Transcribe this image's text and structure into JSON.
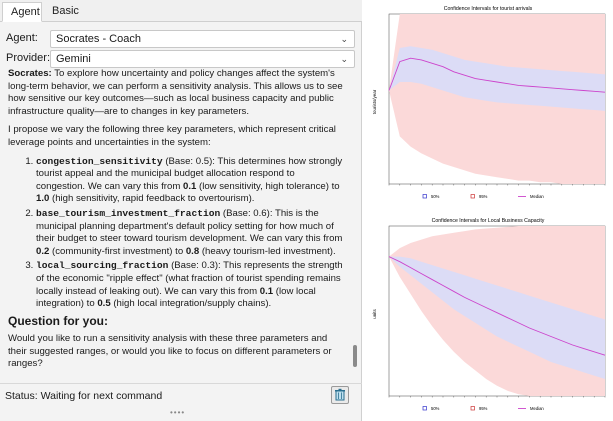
{
  "tabs": [
    {
      "label": "Agent"
    },
    {
      "label": "Basic"
    }
  ],
  "agent_row": {
    "label": "Agent:",
    "value": "Socrates - Coach"
  },
  "provider_row": {
    "label": "Provider:",
    "value": "Gemini"
  },
  "chat": {
    "intro_speaker": "Socrates:",
    "intro_text": " To explore how uncertainty and policy changes affect the system's long-term behavior, we can perform a sensitivity analysis. This allows us to see how sensitive our key outcomes—such as local business capacity and public infrastructure quality—are to changes in key parameters.",
    "propose": "I propose we vary the following three key parameters, which represent critical leverage points and uncertainties in the system:",
    "params": [
      {
        "name": "congestion_sensitivity",
        "base": " (Base: 0.5): This determines how strongly tourist appeal and the municipal budget allocation respond to congestion. We can vary this from ",
        "low": "0.1",
        "mid": " (low sensitivity, high tolerance) to ",
        "high": "1.0",
        "tail": " (high sensitivity, rapid feedback to overtourism)."
      },
      {
        "name": "base_tourism_investment_fraction",
        "base": " (Base: 0.6): This is the municipal planning department's default policy setting for how much of their budget to steer toward tourism development. We can vary this from ",
        "low": "0.2",
        "mid": " (community-first investment) to ",
        "high": "0.8",
        "tail": " (heavy tourism-led investment)."
      },
      {
        "name": "local_sourcing_fraction",
        "base": " (Base: 0.3): This represents the strength of the economic \"ripple effect\" (what fraction of tourist spending remains locally instead of leaking out). We can vary this from ",
        "low": "0.1",
        "mid": " (low local integration) to ",
        "high": "0.5",
        "tail": " (high local integration/supply chains)."
      }
    ],
    "question_heading": "Question for you:",
    "question_text": "Would you like to run a sensitivity analysis with these three parameters and their suggested ranges, or would you like to focus on different parameters or ranges?"
  },
  "status": "Status: Waiting for next command",
  "icons": {
    "trash": "trash-icon",
    "chevron": "chevron-down-icon",
    "grip": "resize-grip-icon"
  },
  "colors": {
    "band95": "#fbd9d9",
    "band50": "#dcdcf6",
    "median": "#cc44cc"
  },
  "charts": [
    {
      "title": "Confidence Intervals for tourist arrivals",
      "ylabel": "tourists/year",
      "legend": [
        "50%",
        "95%",
        "Median"
      ],
      "chart_data": {
        "type": "area",
        "x": [
          0,
          1,
          2,
          3,
          4,
          5,
          6,
          7,
          8,
          9,
          10,
          11,
          12,
          13,
          14,
          15,
          16,
          17,
          18,
          19,
          20
        ],
        "median": [
          0.55,
          0.72,
          0.74,
          0.73,
          0.71,
          0.69,
          0.66,
          0.64,
          0.62,
          0.61,
          0.6,
          0.59,
          0.58,
          0.575,
          0.57,
          0.565,
          0.56,
          0.555,
          0.55,
          0.545,
          0.54
        ],
        "band50_low": [
          0.55,
          0.6,
          0.6,
          0.59,
          0.57,
          0.55,
          0.53,
          0.51,
          0.5,
          0.49,
          0.48,
          0.475,
          0.47,
          0.465,
          0.46,
          0.455,
          0.45,
          0.445,
          0.44,
          0.435,
          0.43
        ],
        "band50_high": [
          0.55,
          0.8,
          0.81,
          0.8,
          0.79,
          0.77,
          0.75,
          0.73,
          0.72,
          0.71,
          0.7,
          0.69,
          0.685,
          0.68,
          0.675,
          0.67,
          0.665,
          0.66,
          0.655,
          0.65,
          0.645
        ],
        "band95_low": [
          0.55,
          0.28,
          0.22,
          0.18,
          0.15,
          0.12,
          0.1,
          0.08,
          0.06,
          0.05,
          0.04,
          0.03,
          0.02,
          0.02,
          0.01,
          0.01,
          0.0,
          0.0,
          0.0,
          0.0,
          0.0
        ],
        "band95_high": [
          0.55,
          1.0,
          1.0,
          1.0,
          1.0,
          1.0,
          1.0,
          1.0,
          1.0,
          1.0,
          1.0,
          1.0,
          1.0,
          1.0,
          1.0,
          1.0,
          1.0,
          1.0,
          1.0,
          1.0,
          1.0
        ]
      }
    },
    {
      "title": "Confidence Intervals for Local Business Capacity",
      "ylabel": "units",
      "legend": [
        "50%",
        "95%",
        "Median"
      ],
      "chart_data": {
        "type": "area",
        "x": [
          0,
          1,
          2,
          3,
          4,
          5,
          6,
          7,
          8,
          9,
          10,
          11,
          12,
          13,
          14,
          15,
          16,
          17,
          18,
          19,
          20
        ],
        "median": [
          0.82,
          0.79,
          0.755,
          0.72,
          0.685,
          0.65,
          0.615,
          0.58,
          0.55,
          0.52,
          0.49,
          0.46,
          0.43,
          0.4,
          0.375,
          0.35,
          0.325,
          0.3,
          0.28,
          0.26,
          0.24
        ],
        "band50_low": [
          0.82,
          0.76,
          0.71,
          0.66,
          0.61,
          0.56,
          0.51,
          0.47,
          0.43,
          0.39,
          0.35,
          0.32,
          0.29,
          0.26,
          0.23,
          0.2,
          0.18,
          0.16,
          0.14,
          0.12,
          0.1
        ],
        "band50_high": [
          0.82,
          0.82,
          0.81,
          0.79,
          0.77,
          0.75,
          0.73,
          0.71,
          0.69,
          0.67,
          0.65,
          0.63,
          0.61,
          0.59,
          0.57,
          0.55,
          0.53,
          0.51,
          0.49,
          0.47,
          0.45
        ],
        "band95_low": [
          0.82,
          0.7,
          0.6,
          0.5,
          0.41,
          0.33,
          0.26,
          0.2,
          0.15,
          0.1,
          0.06,
          0.03,
          0.01,
          0.0,
          0.0,
          0.0,
          0.0,
          0.0,
          0.0,
          0.0,
          0.0
        ],
        "band95_high": [
          0.82,
          0.87,
          0.9,
          0.92,
          0.94,
          0.95,
          0.96,
          0.97,
          0.98,
          0.985,
          0.99,
          0.995,
          1.0,
          1.0,
          1.0,
          1.0,
          1.0,
          1.0,
          1.0,
          1.0,
          1.0
        ]
      }
    }
  ]
}
